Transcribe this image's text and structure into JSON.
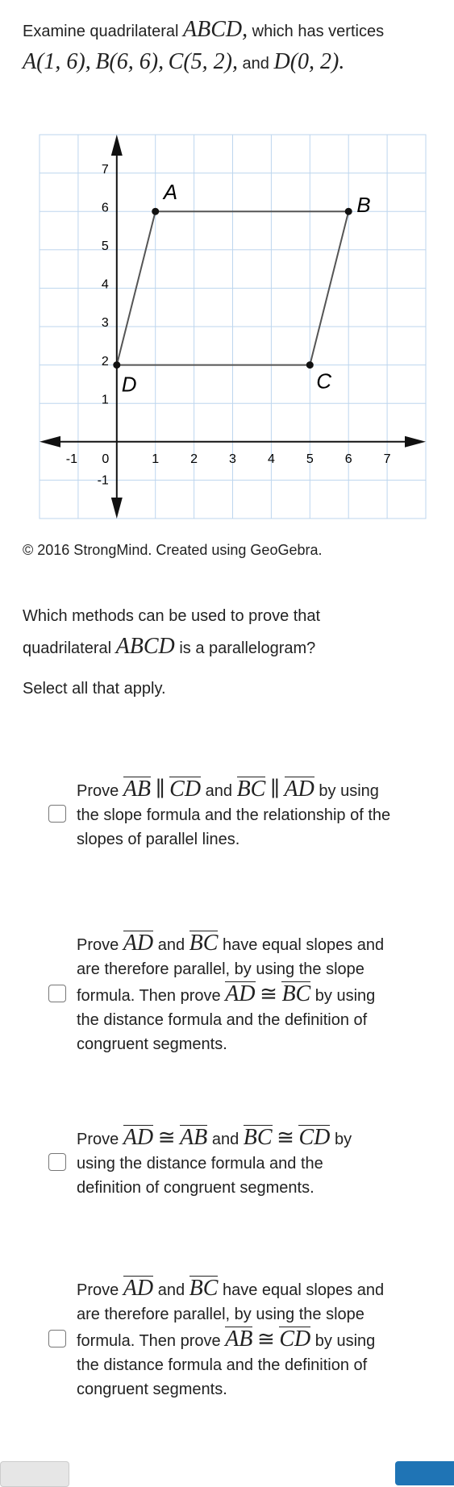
{
  "intro": [
    "Examine quadrilateral",
    "ABCD,",
    "which has vertices",
    "A(1, 6),",
    "B(6, 6),",
    "C(5, 2),",
    "and",
    "D(0, 2)."
  ],
  "graph": {
    "xlim": [
      -2,
      8
    ],
    "ylim": [
      -2,
      8
    ],
    "xticks": [
      -1,
      0,
      1,
      2,
      3,
      4,
      5,
      6,
      7
    ],
    "yticks": [
      -1,
      1,
      2,
      3,
      4,
      5,
      6,
      7
    ],
    "points": [
      {
        "label": "A",
        "x": 1,
        "y": 6
      },
      {
        "label": "B",
        "x": 6,
        "y": 6
      },
      {
        "label": "C",
        "x": 5,
        "y": 2
      },
      {
        "label": "D",
        "x": 0,
        "y": 2
      }
    ]
  },
  "credit": "© 2016 StrongMind. Created using GeoGebra.",
  "question": [
    "Which methods can be used to prove that quadrilateral",
    "ABCD",
    "is a parallelogram?"
  ],
  "instruction": "Select all that apply.",
  "options": [
    [
      "Prove",
      "AB",
      "∥",
      "CD",
      "and",
      "BC",
      "∥",
      "AD",
      "by using the slope formula and the relationship of the slopes of parallel lines."
    ],
    [
      "Prove",
      "AD",
      "and",
      "BC",
      "have equal slopes and are therefore parallel, by using the slope formula. Then prove",
      "AD",
      "≅",
      "BC",
      "by using the distance formula and the definition of congruent segments."
    ],
    [
      "Prove",
      "AD",
      "≅",
      "AB",
      "and",
      "BC",
      "≅",
      "CD",
      "by using the distance formula and the definition of congruent segments."
    ],
    [
      "Prove",
      "AD",
      "and",
      "BC",
      "have equal slopes and are therefore parallel, by using the slope formula. Then prove",
      "AB",
      "≅",
      "CD",
      "by using the distance formula and the definition of congruent segments."
    ]
  ]
}
